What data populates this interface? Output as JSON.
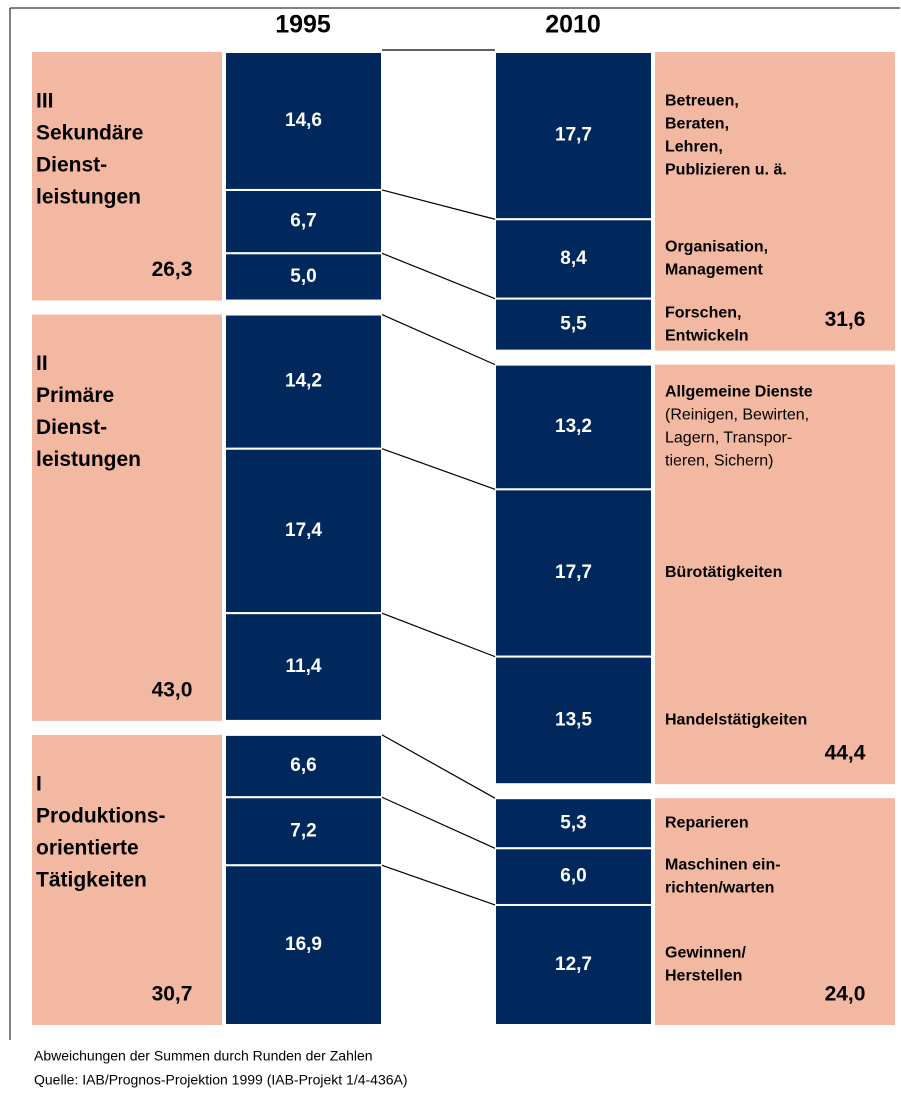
{
  "years": [
    "1995",
    "2010"
  ],
  "groups_1995": [
    {
      "title": [
        "III",
        "Sekundäre",
        "Dienst-",
        "leistungen"
      ],
      "total": {
        "value": 26.3,
        "label": "26,3"
      },
      "segments": [
        {
          "value": 14.6,
          "label": "14,6"
        },
        {
          "value": 6.7,
          "label": "6,7"
        },
        {
          "value": 5.0,
          "label": "5,0"
        }
      ]
    },
    {
      "title": [
        "II",
        "Primäre",
        "Dienst-",
        "leistungen"
      ],
      "total": {
        "value": 43.0,
        "label": "43,0"
      },
      "segments": [
        {
          "value": 14.2,
          "label": "14,2"
        },
        {
          "value": 17.4,
          "label": "17,4"
        },
        {
          "value": 11.4,
          "label": "11,4"
        }
      ]
    },
    {
      "title": [
        "I",
        "Produktions-",
        "orientierte",
        "Tätigkeiten"
      ],
      "total": {
        "value": 30.7,
        "label": "30,7"
      },
      "segments": [
        {
          "value": 6.6,
          "label": "6,6"
        },
        {
          "value": 7.2,
          "label": "7,2"
        },
        {
          "value": 16.9,
          "label": "16,9"
        }
      ]
    }
  ],
  "groups_2010": [
    {
      "total": {
        "value": 31.6,
        "label": "31,6"
      },
      "segments": [
        {
          "value": 17.7,
          "label": "17,7",
          "text": [
            "Betreuen,",
            "Beraten,",
            "Lehren,",
            "Publizieren u. ä."
          ]
        },
        {
          "value": 8.4,
          "label": "8,4",
          "text": [
            "Organisation,",
            "Management"
          ]
        },
        {
          "value": 5.5,
          "label": "5,5",
          "text": [
            "Forschen,",
            "Entwickeln"
          ]
        }
      ]
    },
    {
      "total": {
        "value": 44.4,
        "label": "44,4"
      },
      "segments": [
        {
          "value": 13.2,
          "label": "13,2",
          "text": [
            "Allgemeine Dienste"
          ],
          "subtext": [
            "(Reinigen, Bewirten,",
            "Lagern, Transpor-",
            "tieren, Sichern)"
          ]
        },
        {
          "value": 17.7,
          "label": "17,7",
          "text": [
            "Bürotätigkeiten"
          ]
        },
        {
          "value": 13.5,
          "label": "13,5",
          "text": [
            "Handelstätigkeiten"
          ]
        }
      ]
    },
    {
      "total": {
        "value": 24.0,
        "label": "24,0"
      },
      "segments": [
        {
          "value": 5.3,
          "label": "5,3",
          "text": [
            "Reparieren"
          ]
        },
        {
          "value": 6.0,
          "label": "6,0",
          "text": [
            "Maschinen ein-",
            "richten/warten"
          ]
        },
        {
          "value": 12.7,
          "label": "12,7",
          "text": [
            "Gewinnen/",
            "Herstellen"
          ]
        }
      ]
    }
  ],
  "notes": [
    "Abweichungen der Summen durch Runden der Zahlen",
    "Quelle: IAB/Prognos-Projektion 1999 (IAB-Projekt 1/4-436A)"
  ]
}
